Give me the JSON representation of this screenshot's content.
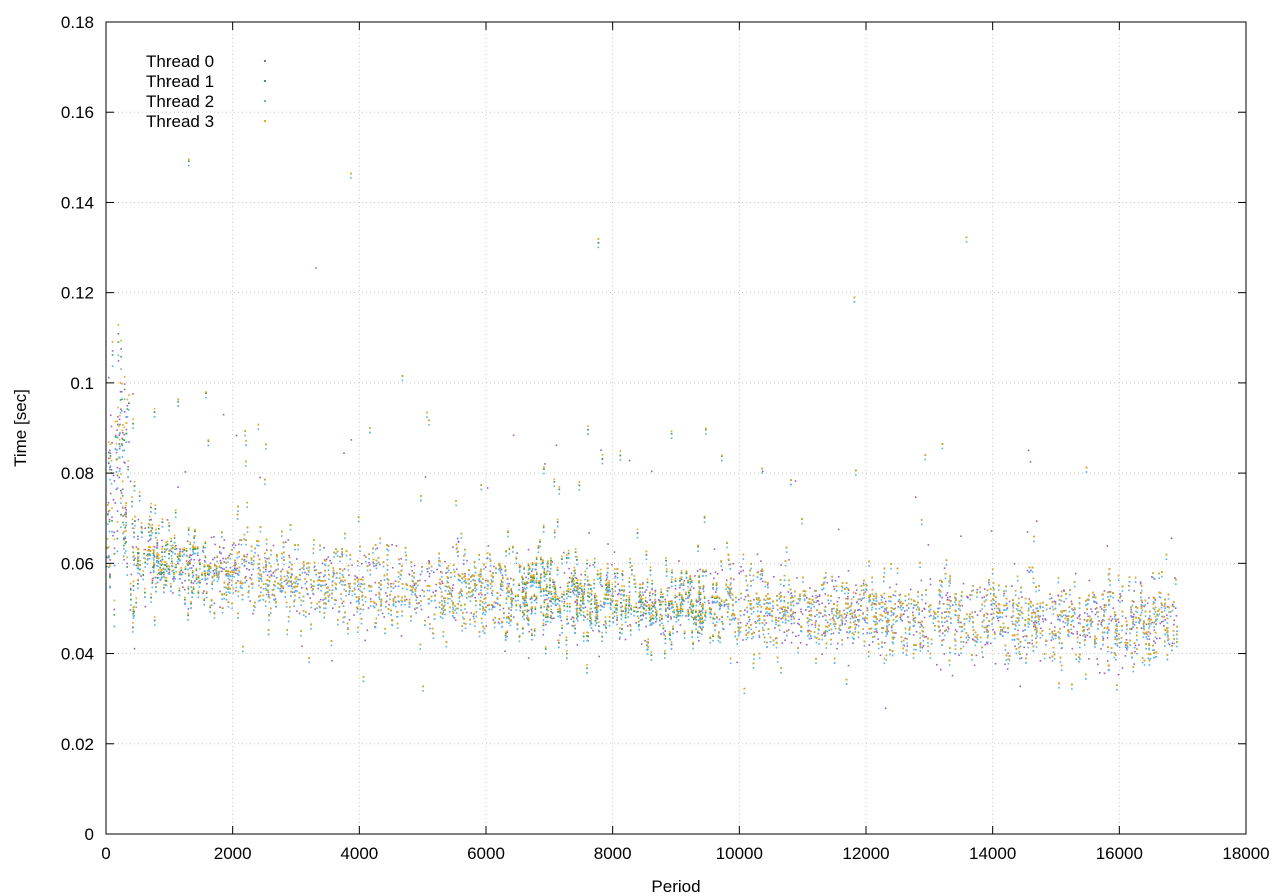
{
  "chart_data": {
    "type": "scatter",
    "title": "",
    "xlabel": "Period",
    "ylabel": "Time [sec]",
    "xlim": [
      0,
      18000
    ],
    "ylim": [
      0,
      0.18
    ],
    "xticks": [
      0,
      2000,
      4000,
      6000,
      8000,
      10000,
      12000,
      14000,
      16000,
      18000
    ],
    "yticks": [
      0,
      0.02,
      0.04,
      0.06,
      0.08,
      0.1,
      0.12,
      0.14,
      0.16,
      0.18
    ],
    "xtick_labels": [
      "0",
      "2000",
      "4000",
      "6000",
      "8000",
      "10000",
      "12000",
      "14000",
      "16000",
      "18000"
    ],
    "ytick_labels": [
      "0",
      "0.02",
      "0.04",
      "0.06",
      "0.08",
      "0.1",
      "0.12",
      "0.14",
      "0.16",
      "0.18"
    ],
    "grid": true,
    "legend_position": "top-left",
    "marker": "dot",
    "series": [
      {
        "name": "Thread 0",
        "color": "#9a5ec6",
        "trend": [
          [
            0,
            0.068
          ],
          [
            200,
            0.09
          ],
          [
            400,
            0.062
          ],
          [
            2000,
            0.058
          ],
          [
            4000,
            0.055
          ],
          [
            6000,
            0.054
          ],
          [
            8000,
            0.052
          ],
          [
            10000,
            0.051
          ],
          [
            12000,
            0.049
          ],
          [
            14000,
            0.048
          ],
          [
            16000,
            0.047
          ],
          [
            16900,
            0.048
          ]
        ]
      },
      {
        "name": "Thread 1",
        "color": "#3aa14a",
        "trend": [
          [
            0,
            0.068
          ],
          [
            200,
            0.088
          ],
          [
            400,
            0.062
          ],
          [
            2000,
            0.058
          ],
          [
            4000,
            0.055
          ],
          [
            6000,
            0.054
          ],
          [
            8000,
            0.052
          ],
          [
            10000,
            0.051
          ],
          [
            12000,
            0.049
          ],
          [
            14000,
            0.048
          ],
          [
            16000,
            0.047
          ],
          [
            16900,
            0.048
          ]
        ]
      },
      {
        "name": "Thread 2",
        "color": "#56b4e9",
        "trend": [
          [
            0,
            0.066
          ],
          [
            200,
            0.085
          ],
          [
            400,
            0.061
          ],
          [
            2000,
            0.057
          ],
          [
            4000,
            0.054
          ],
          [
            6000,
            0.053
          ],
          [
            8000,
            0.051
          ],
          [
            10000,
            0.05
          ],
          [
            12000,
            0.048
          ],
          [
            14000,
            0.047
          ],
          [
            16000,
            0.046
          ],
          [
            16900,
            0.047
          ]
        ]
      },
      {
        "name": "Thread 3",
        "color": "#e6a91f",
        "trend": [
          [
            0,
            0.07
          ],
          [
            200,
            0.092
          ],
          [
            400,
            0.063
          ],
          [
            2000,
            0.058
          ],
          [
            4000,
            0.055
          ],
          [
            6000,
            0.054
          ],
          [
            8000,
            0.053
          ],
          [
            10000,
            0.051
          ],
          [
            12000,
            0.049
          ],
          [
            14000,
            0.048
          ],
          [
            16000,
            0.047
          ],
          [
            16900,
            0.048
          ]
        ]
      }
    ]
  }
}
